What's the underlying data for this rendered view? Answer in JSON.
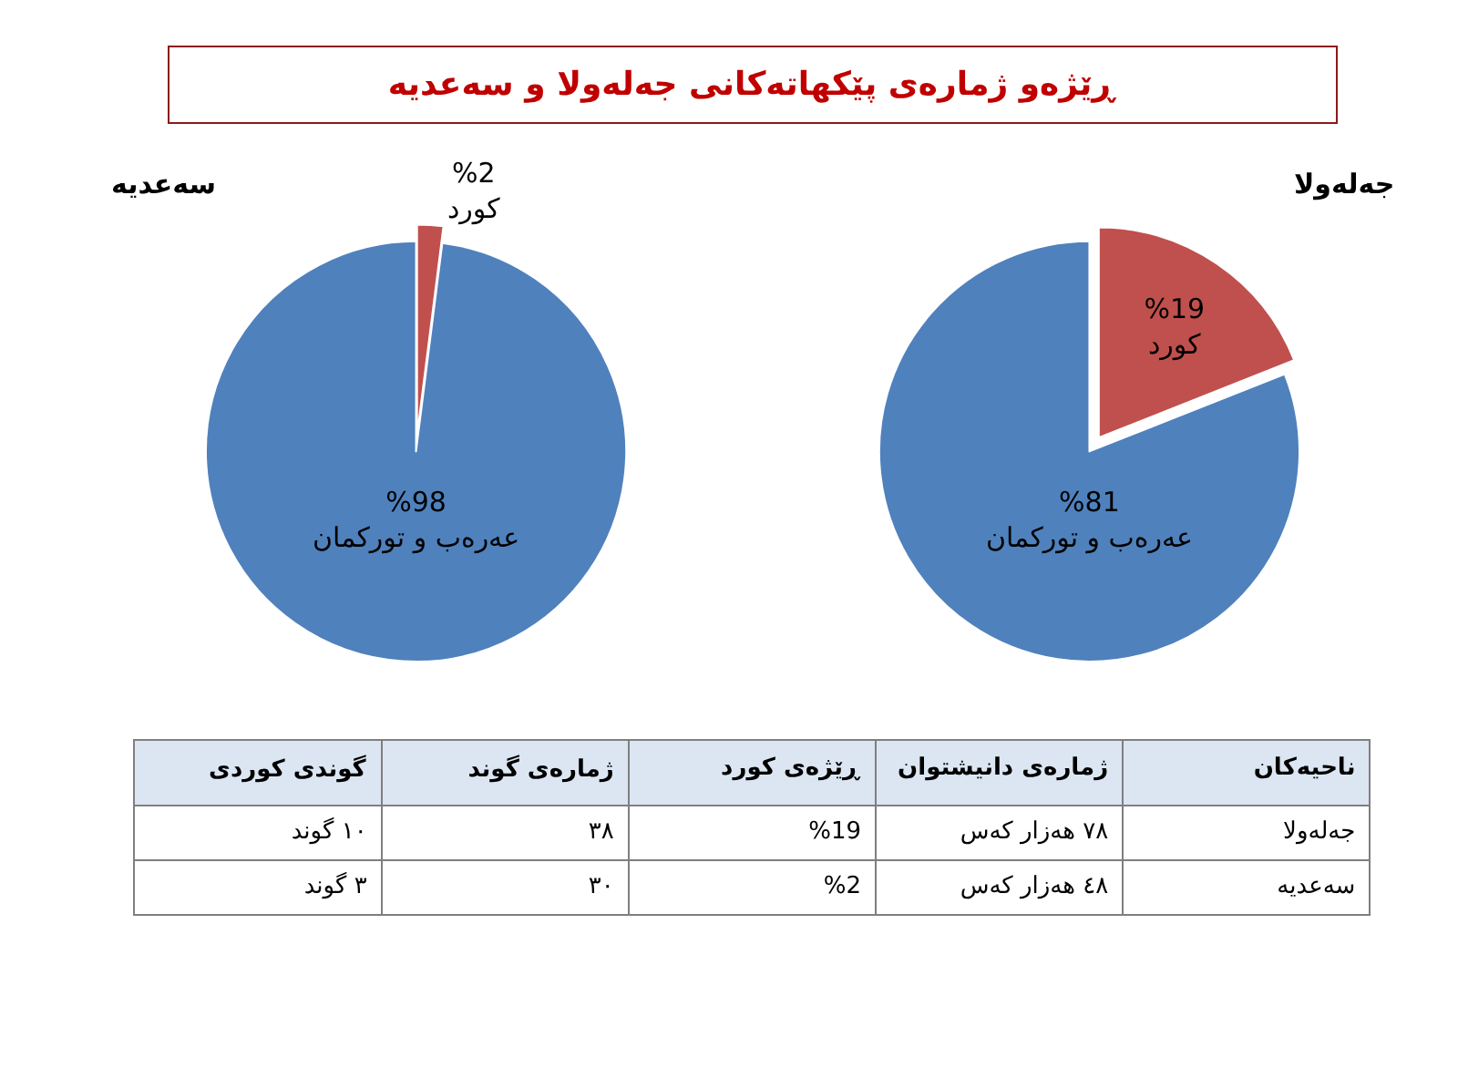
{
  "chart_data": [
    {
      "type": "pie",
      "title": "جەلەولا",
      "categories": [
        "کورد",
        "عەرەب و تورکمان"
      ],
      "values": [
        19,
        81
      ],
      "value_labels": [
        "%19",
        "%81"
      ],
      "colors": [
        "#c0504d",
        "#4f81bd"
      ]
    },
    {
      "type": "pie",
      "title": "سەعدیە",
      "categories": [
        "کورد",
        "عەرەب و تورکمان"
      ],
      "values": [
        2,
        98
      ],
      "value_labels": [
        "%2",
        "%98"
      ],
      "colors": [
        "#c0504d",
        "#4f81bd"
      ]
    },
    {
      "type": "other",
      "title": "ڕێژەو ژمارەی پێکهاتەکانی جەلەولا و سەعدیە",
      "annotations": [
        "ناحیەکان",
        "ژمارەی دانیشتوان",
        "ڕێژەی کورد",
        "ژمارەی گوند",
        "گوندی کوردی",
        "جەلەولا",
        "٧٨ هەزار کەس",
        "%19",
        "٣٨",
        "١٠ گوند",
        "سەعدیە",
        "٤٨ هەزار کەس",
        "%2",
        "٣٠",
        "٣ گوند"
      ]
    }
  ]
}
